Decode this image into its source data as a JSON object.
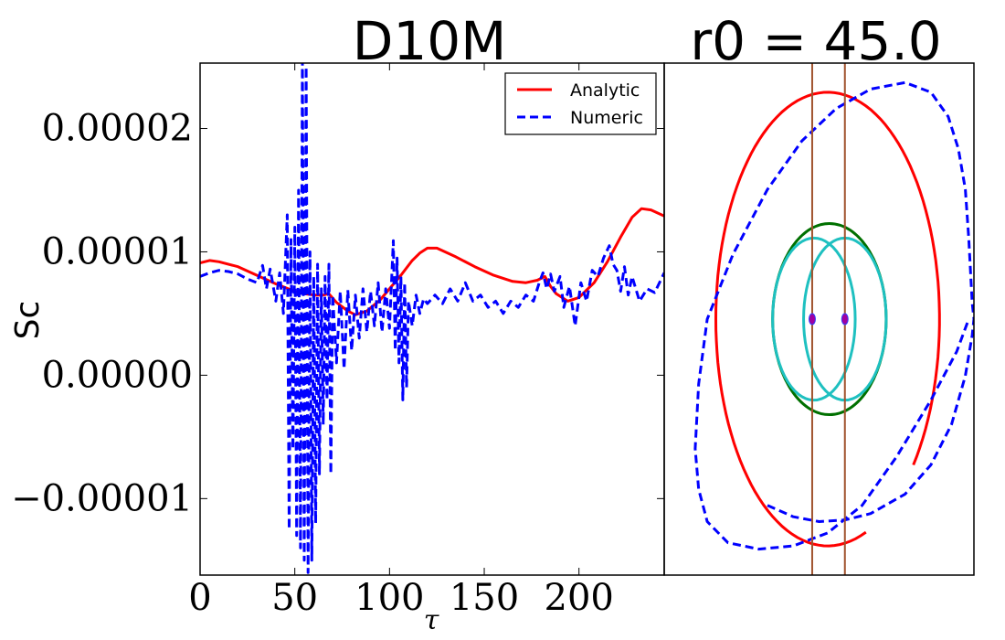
{
  "chart_data": [
    {
      "type": "line",
      "title": "D10M",
      "xlabel": "τ",
      "ylabel": "Sc",
      "xlim": [
        0,
        245
      ],
      "ylim": [
        -1.62e-05,
        2.53e-05
      ],
      "xticks": [
        0,
        50,
        100,
        150,
        200
      ],
      "xtick_labels": [
        "0",
        "50",
        "100",
        "150",
        "200"
      ],
      "yticks": [
        -1e-05,
        0.0,
        1e-05,
        2e-05
      ],
      "ytick_labels": [
        "−0.00001",
        "0.00000",
        "0.00001",
        "0.00002"
      ],
      "legend": {
        "position": "top-right",
        "entries": [
          "Analytic",
          "Numeric"
        ]
      },
      "series": [
        {
          "name": "Analytic",
          "color": "#ff0000",
          "style": "solid",
          "x": [
            0,
            5,
            10,
            20,
            30,
            40,
            50,
            55,
            60,
            65,
            68,
            72,
            78,
            82,
            88,
            95,
            100,
            106,
            112,
            116,
            120,
            125,
            135,
            145,
            155,
            165,
            172,
            178,
            182,
            185,
            188,
            194,
            200,
            208,
            215,
            222,
            228,
            233,
            238,
            245
          ],
          "y": [
            9.1e-06,
            9.3e-06,
            9.2e-06,
            8.8e-06,
            8.1e-06,
            7.4e-06,
            6.8e-06,
            6.6e-06,
            6.5e-06,
            6.5e-06,
            6.6e-06,
            5.9e-06,
            5.2e-06,
            4.9e-06,
            5.2e-06,
            6.1e-06,
            7e-06,
            8.1e-06,
            9.3e-06,
            9.9e-06,
            1.03e-05,
            1.03e-05,
            9.6e-06,
            8.8e-06,
            8.1e-06,
            7.6e-06,
            7.5e-06,
            7.7e-06,
            8e-06,
            7.2e-06,
            6.6e-06,
            6e-06,
            6.3e-06,
            7.5e-06,
            9.2e-06,
            1.12e-05,
            1.28e-05,
            1.35e-05,
            1.34e-05,
            1.29e-05
          ]
        },
        {
          "name": "Numeric",
          "color": "#0000ff",
          "style": "dashed",
          "x": [
            0,
            5,
            10,
            15,
            20,
            25,
            30,
            33,
            35,
            37,
            40,
            42,
            44,
            46,
            47,
            48,
            49,
            50,
            51,
            52,
            53,
            54,
            55,
            56,
            57,
            58,
            59,
            60,
            61,
            62,
            63,
            64,
            65,
            66,
            67,
            68,
            69,
            70,
            72,
            74,
            76,
            78,
            80,
            82,
            84,
            86,
            88,
            90,
            92,
            94,
            96,
            98,
            100,
            102,
            103,
            104,
            105,
            106,
            107,
            108,
            109,
            110,
            112,
            114,
            116,
            118,
            120,
            124,
            128,
            132,
            136,
            140,
            144,
            148,
            152,
            156,
            160,
            164,
            168,
            172,
            176,
            179,
            181,
            183,
            185,
            187,
            190,
            192,
            195,
            198,
            201,
            204,
            207,
            210,
            213,
            216,
            218,
            220,
            222,
            224,
            226,
            228,
            232,
            236,
            240,
            245
          ],
          "y": [
            8e-06,
            8.3e-06,
            8.5e-06,
            8.4e-06,
            8.2e-06,
            7.8e-06,
            7.5e-06,
            8.9e-06,
            7e-06,
            8.6e-06,
            6e-06,
            8.3e-06,
            5e-06,
            1.3e-05,
            -1.25e-05,
            1.1e-05,
            -6e-06,
            1.2e-05,
            -1.3e-05,
            1.5e-05,
            -1.4e-05,
            2.6e-05,
            -1.5e-05,
            2.5e-05,
            -1.6e-05,
            1e-05,
            -1.5e-05,
            8e-06,
            -1.2e-05,
            9e-06,
            -8e-06,
            7e-06,
            -4e-06,
            8e-06,
            -2e-06,
            9e-06,
            -8e-06,
            6.5e-06,
            1e-06,
            6.8e-06,
            5e-07,
            6.9e-06,
            2e-06,
            6.5e-06,
            3e-06,
            7e-06,
            3.5e-06,
            6.8e-06,
            4e-06,
            7.5e-06,
            3.5e-06,
            7e-06,
            3.8e-06,
            1.09e-05,
            2e-06,
            9.5e-06,
            1e-06,
            8e-06,
            -2e-06,
            7.5e-06,
            -1e-06,
            6e-06,
            4e-06,
            6.5e-06,
            5e-06,
            6.2e-06,
            5.8e-06,
            6.5e-06,
            5.8e-06,
            7e-06,
            6e-06,
            7.5e-06,
            6e-06,
            6.5e-06,
            5.5e-06,
            6e-06,
            5e-06,
            6e-06,
            5.5e-06,
            6.5e-06,
            6e-06,
            7.5e-06,
            8.3e-06,
            7e-06,
            8.2e-06,
            6.8e-06,
            8e-06,
            5.5e-06,
            7.2e-06,
            4e-06,
            7.5e-06,
            6e-06,
            8.5e-06,
            8e-06,
            9.5e-06,
            1.05e-05,
            9e-06,
            8.5e-06,
            6.8e-06,
            8.8e-06,
            6.5e-06,
            8e-06,
            6e-06,
            7e-06,
            6.7e-06,
            8.3e-06
          ]
        }
      ]
    },
    {
      "type": "line",
      "title": "r0 = 45.0",
      "xlim": [
        -95,
        85
      ],
      "ylim": [
        -158,
        158
      ],
      "axes_ticks": "none",
      "series": [
        {
          "name": "Analytic",
          "color": "#ff0000",
          "style": "solid",
          "shape": "ellipse",
          "center": [
            0,
            0
          ],
          "semi_axes": [
            65,
            140
          ],
          "start_angle_deg": -40,
          "sweep_deg": 330
        },
        {
          "name": "Numeric",
          "color": "#0000ff",
          "style": "dashed",
          "x": [
            -35,
            -20,
            -5,
            10,
            25,
            45,
            60,
            72,
            80,
            84,
            85,
            84,
            82,
            80,
            76,
            70,
            60,
            45,
            25,
            5,
            -15,
            -35,
            -55,
            -70,
            -75,
            -77,
            -75,
            -70,
            -58,
            -40,
            -20,
            0,
            20,
            40,
            60,
            75,
            82
          ],
          "y": [
            -115,
            -122,
            -125,
            -124,
            -120,
            -108,
            -90,
            -65,
            -35,
            -10,
            0,
            10,
            50,
            80,
            105,
            125,
            140,
            146,
            142,
            130,
            110,
            80,
            40,
            0,
            -40,
            -80,
            -105,
            -125,
            -138,
            -142,
            -140,
            -132,
            -115,
            -85,
            -50,
            -20,
            0
          ]
        },
        {
          "name": "Big circle",
          "color": "#007000",
          "style": "solid",
          "shape": "ellipse",
          "center": [
            1,
            0
          ],
          "semi_axes": [
            33,
            59
          ]
        },
        {
          "name": "Small circle left",
          "color": "#1ec0c0",
          "style": "solid",
          "shape": "ellipse",
          "center": [
            -8,
            0
          ],
          "semi_axes": [
            24,
            50
          ]
        },
        {
          "name": "Small circle right",
          "color": "#1ec0c0",
          "style": "solid",
          "shape": "ellipse",
          "center": [
            10,
            0
          ],
          "semi_axes": [
            24,
            50
          ]
        },
        {
          "name": "Vertical lines",
          "color": "#a0522d",
          "style": "solid",
          "vlines_x": [
            -9,
            10
          ]
        },
        {
          "name": "Point masses",
          "color": "#a000a0",
          "points": [
            [
              -9,
              0
            ],
            [
              10,
              0
            ]
          ]
        }
      ]
    }
  ]
}
